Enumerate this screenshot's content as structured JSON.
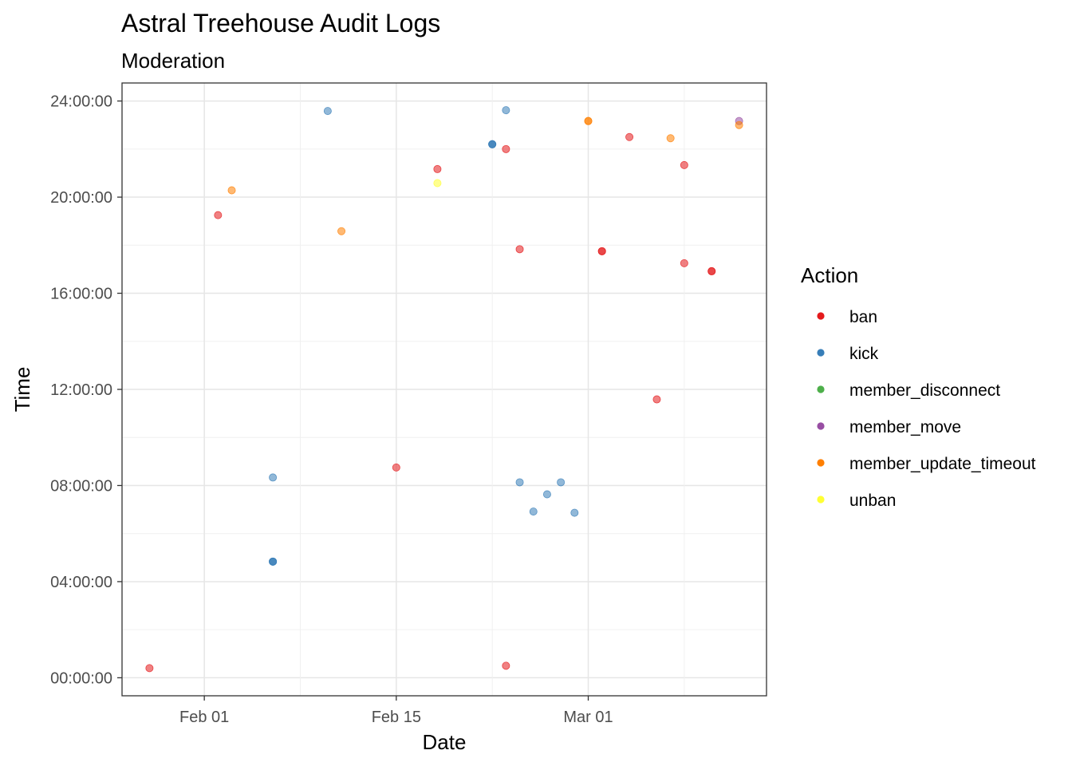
{
  "chart_data": {
    "type": "scatter",
    "title": "Astral Treehouse Audit Logs",
    "subtitle": "Moderation",
    "xlabel": "Date",
    "ylabel": "Time",
    "x_ticks": [
      "Feb 01",
      "Feb 15",
      "Mar 01"
    ],
    "y_ticks": [
      "00:00:00",
      "04:00:00",
      "08:00:00",
      "12:00:00",
      "16:00:00",
      "20:00:00",
      "24:00:00"
    ],
    "xlim": [
      "2022-01-26",
      "2022-03-14"
    ],
    "ylim": [
      "-00:45:00",
      "24:45:00"
    ],
    "grid": true,
    "legend": {
      "title": "Action",
      "position": "right",
      "entries": [
        "ban",
        "kick",
        "member_disconnect",
        "member_move",
        "member_update_timeout",
        "unban"
      ]
    },
    "colors": {
      "ban": "#e41a1c",
      "kick": "#377eb8",
      "member_disconnect": "#4daf4a",
      "member_move": "#984ea3",
      "member_update_timeout": "#ff7f00",
      "unban": "#ffff33"
    },
    "series": [
      {
        "name": "ban",
        "points": [
          {
            "x": "2022-01-28",
            "y": "00:24"
          },
          {
            "x": "2022-02-02",
            "y": "19:15"
          },
          {
            "x": "2022-02-15",
            "y": "08:45"
          },
          {
            "x": "2022-02-18",
            "y": "21:10"
          },
          {
            "x": "2022-02-23",
            "y": "22:00"
          },
          {
            "x": "2022-02-23",
            "y": "00:30"
          },
          {
            "x": "2022-02-24",
            "y": "17:50"
          },
          {
            "x": "2022-03-02",
            "y": "17:45"
          },
          {
            "x": "2022-03-02",
            "y": "17:45"
          },
          {
            "x": "2022-03-04",
            "y": "22:30"
          },
          {
            "x": "2022-03-06",
            "y": "11:35"
          },
          {
            "x": "2022-03-08",
            "y": "21:20"
          },
          {
            "x": "2022-03-08",
            "y": "17:15"
          },
          {
            "x": "2022-03-10",
            "y": "16:55"
          },
          {
            "x": "2022-03-10",
            "y": "16:55"
          }
        ]
      },
      {
        "name": "kick",
        "points": [
          {
            "x": "2022-02-06",
            "y": "08:20"
          },
          {
            "x": "2022-02-06",
            "y": "04:50"
          },
          {
            "x": "2022-02-06",
            "y": "04:50"
          },
          {
            "x": "2022-02-06",
            "y": "04:50"
          },
          {
            "x": "2022-02-10",
            "y": "23:35"
          },
          {
            "x": "2022-02-22",
            "y": "22:12"
          },
          {
            "x": "2022-02-22",
            "y": "22:12"
          },
          {
            "x": "2022-02-22",
            "y": "22:12"
          },
          {
            "x": "2022-02-23",
            "y": "23:37"
          },
          {
            "x": "2022-02-24",
            "y": "08:08"
          },
          {
            "x": "2022-02-25",
            "y": "06:55"
          },
          {
            "x": "2022-02-26",
            "y": "07:38"
          },
          {
            "x": "2022-02-27",
            "y": "08:08"
          },
          {
            "x": "2022-02-28",
            "y": "06:52"
          }
        ]
      },
      {
        "name": "member_move",
        "points": [
          {
            "x": "2022-03-12",
            "y": "23:10"
          }
        ]
      },
      {
        "name": "member_update_timeout",
        "points": [
          {
            "x": "2022-02-03",
            "y": "20:17"
          },
          {
            "x": "2022-02-11",
            "y": "18:35"
          },
          {
            "x": "2022-03-01",
            "y": "23:10"
          },
          {
            "x": "2022-03-01",
            "y": "23:10"
          },
          {
            "x": "2022-03-07",
            "y": "22:27"
          },
          {
            "x": "2022-03-12",
            "y": "23:00"
          }
        ]
      },
      {
        "name": "unban",
        "points": [
          {
            "x": "2022-02-18",
            "y": "20:35"
          }
        ]
      }
    ]
  }
}
